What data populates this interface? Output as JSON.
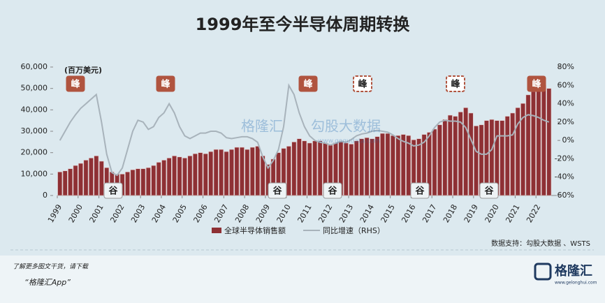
{
  "chart_data": {
    "type": "bar-line",
    "title": "1999年至今半导体周期转换",
    "y_unit": "(百万美元)",
    "source": "数据支持：勾股大数据 、WSTS",
    "watermark": [
      "格隆汇",
      "勾股大数据",
      "www.gogudata.com"
    ],
    "annotations": [
      "峰",
      "峰",
      "峰",
      "峰",
      "峰",
      "峰",
      "谷",
      "谷",
      "谷",
      "谷",
      "谷"
    ],
    "x": [
      1999.125,
      1999.375,
      1999.625,
      1999.875,
      2000.125,
      2000.375,
      2000.625,
      2000.875,
      2001.125,
      2001.375,
      2001.625,
      2001.875,
      2002.125,
      2002.375,
      2002.625,
      2002.875,
      2003.125,
      2003.375,
      2003.625,
      2003.875,
      2004.125,
      2004.375,
      2004.625,
      2004.875,
      2005.125,
      2005.375,
      2005.625,
      2005.875,
      2006.125,
      2006.375,
      2006.625,
      2006.875,
      2007.125,
      2007.375,
      2007.625,
      2007.875,
      2008.125,
      2008.375,
      2008.625,
      2008.875,
      2009.125,
      2009.375,
      2009.625,
      2009.875,
      2010.125,
      2010.375,
      2010.625,
      2010.875,
      2011.125,
      2011.375,
      2011.625,
      2011.875,
      2012.125,
      2012.375,
      2012.625,
      2012.875,
      2013.125,
      2013.375,
      2013.625,
      2013.875,
      2014.125,
      2014.375,
      2014.625,
      2014.875,
      2015.125,
      2015.375,
      2015.625,
      2015.875,
      2016.125,
      2016.375,
      2016.625,
      2016.875,
      2017.125,
      2017.375,
      2017.625,
      2017.875,
      2018.125,
      2018.375,
      2018.625,
      2018.875,
      2019.125,
      2019.375,
      2019.625,
      2019.875,
      2020.125,
      2020.375,
      2020.625,
      2020.875,
      2021.125,
      2021.375,
      2021.625,
      2021.875,
      2022.125,
      2022.375,
      2022.625
    ],
    "series": [
      {
        "name": "全球半导体销售额",
        "color": "#8e3034",
        "values": [
          11000,
          11500,
          12500,
          14000,
          15000,
          16500,
          17500,
          18500,
          16000,
          13000,
          11000,
          10000,
          10000,
          11000,
          12000,
          12500,
          12500,
          13000,
          14000,
          15500,
          16500,
          17500,
          18500,
          18000,
          17500,
          18500,
          19500,
          20000,
          19500,
          20500,
          21500,
          21500,
          20500,
          21500,
          22500,
          22500,
          21500,
          22500,
          23000,
          18500,
          14500,
          17000,
          20000,
          22000,
          23000,
          25000,
          26500,
          25500,
          24500,
          25500,
          25500,
          24500,
          23500,
          24500,
          25000,
          24500,
          24000,
          25500,
          26500,
          27000,
          26500,
          27500,
          29000,
          29000,
          28000,
          28000,
          28500,
          28000,
          26000,
          26500,
          28500,
          29500,
          31000,
          33000,
          35500,
          37500,
          37000,
          39000,
          41000,
          38500,
          32500,
          33000,
          35000,
          35500,
          35000,
          35000,
          37000,
          38500,
          41000,
          43000,
          47000,
          48500,
          51000,
          51500,
          50000
        ]
      },
      {
        "name": "同比增速（RHS）",
        "color": "#a8b3bb",
        "axis": "y2",
        "values": [
          0,
          10,
          20,
          28,
          35,
          40,
          45,
          50,
          20,
          -15,
          -35,
          -38,
          -30,
          -10,
          10,
          22,
          20,
          12,
          15,
          25,
          30,
          40,
          30,
          15,
          5,
          2,
          5,
          8,
          8,
          10,
          10,
          8,
          3,
          2,
          3,
          4,
          4,
          2,
          -2,
          -18,
          -30,
          -22,
          -10,
          15,
          60,
          50,
          30,
          15,
          5,
          0,
          -2,
          -3,
          -5,
          -3,
          -1,
          -2,
          1,
          5,
          7,
          8,
          10,
          11,
          10,
          9,
          6,
          2,
          -1,
          -3,
          -6,
          -5,
          -2,
          5,
          14,
          20,
          22,
          21,
          21,
          20,
          14,
          1,
          -12,
          -15,
          -15,
          -10,
          5,
          5,
          5,
          6,
          18,
          25,
          28,
          27,
          25,
          22,
          20
        ]
      }
    ],
    "xlim": [
      1999,
      2023
    ],
    "xticks": [
      1999,
      2000,
      2001,
      2002,
      2003,
      2004,
      2005,
      2006,
      2007,
      2008,
      2009,
      2010,
      2011,
      2012,
      2013,
      2014,
      2015,
      2016,
      2017,
      2018,
      2019,
      2020,
      2021,
      2022
    ],
    "ylim": [
      0,
      60000
    ],
    "yticks": [
      0,
      {
        "value": 10000,
        "label": "10,000"
      },
      {
        "value": 20000,
        "label": "20,000"
      },
      {
        "value": 30000,
        "label": "30,000"
      },
      {
        "value": 40000,
        "label": "40,000"
      },
      {
        "value": 50000,
        "label": "50,000"
      },
      {
        "value": 60000,
        "label": "60,000"
      }
    ],
    "y2lim": [
      -60,
      80
    ],
    "y2ticks": [
      {
        "value": -60,
        "label": "-60%"
      },
      {
        "value": -40,
        "label": "-40%"
      },
      {
        "value": -20,
        "label": "-20%"
      },
      {
        "value": 0,
        "label": "0%"
      },
      {
        "value": 20,
        "label": "20%"
      },
      {
        "value": 40,
        "label": "40%"
      },
      {
        "value": 60,
        "label": "60%"
      },
      {
        "value": 80,
        "label": "80%"
      }
    ]
  },
  "footer": {
    "line1": "了解更多图文干货，请下载",
    "line2": "“格隆汇App”",
    "logo": "格隆汇",
    "logo_url": "www.gelonghui.com"
  }
}
